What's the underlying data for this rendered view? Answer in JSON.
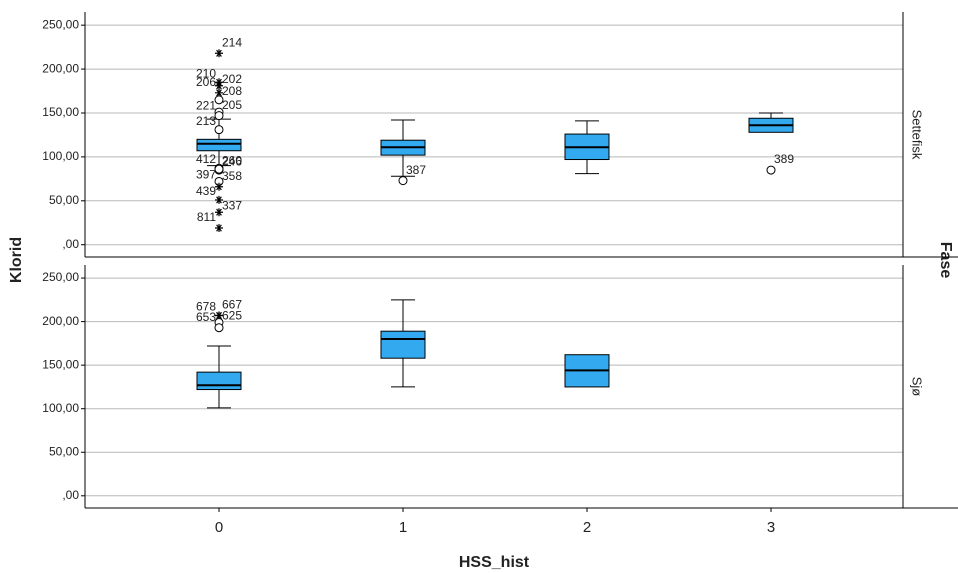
{
  "chart_data": {
    "type": "boxplot",
    "x_label": "HSS_hist",
    "y_label": "Klorid",
    "facet_label": "Fase",
    "categories": [
      "0",
      "1",
      "2",
      "3"
    ],
    "color": "#33aaf0",
    "grid": true,
    "ylim": [
      -14,
      265
    ],
    "yticks": [
      {
        "value": 0,
        "label": ",00"
      },
      {
        "value": 50,
        "label": "50,00"
      },
      {
        "value": 100,
        "label": "100,00"
      },
      {
        "value": 150,
        "label": "150,00"
      },
      {
        "value": 200,
        "label": "200,00"
      },
      {
        "value": 250,
        "label": "250,00"
      }
    ],
    "panels": [
      {
        "name": "Settefisk",
        "boxes": [
          {
            "min": 90,
            "q1": 107,
            "median": 115,
            "q3": 120,
            "max": 143,
            "outliers": [
              {
                "value": 218,
                "label": "214",
                "marker": "star"
              },
              {
                "value": 185,
                "label": "210",
                "marker": "star"
              },
              {
                "value": 181,
                "label": "202",
                "marker": "star"
              },
              {
                "value": 173,
                "label": "206",
                "marker": "star"
              },
              {
                "value": 165,
                "label": "208",
                "marker": "circle"
              },
              {
                "value": 151,
                "label": "221",
                "marker": "circle"
              },
              {
                "value": 147,
                "label": "205",
                "marker": "circle"
              },
              {
                "value": 131,
                "label": "213",
                "marker": "circle"
              },
              {
                "value": 87,
                "label": "246",
                "marker": "circle"
              },
              {
                "value": 85,
                "label": "412",
                "marker": "circle"
              },
              {
                "value": 86,
                "label": "260",
                "marker": "circle"
              },
              {
                "value": 72,
                "label": "397",
                "marker": "circle"
              },
              {
                "value": 66,
                "label": "358",
                "marker": "star"
              },
              {
                "value": 51,
                "label": "439",
                "marker": "star"
              },
              {
                "value": 37,
                "label": "337",
                "marker": "star"
              },
              {
                "value": 19,
                "label": "811",
                "marker": "star"
              }
            ]
          },
          {
            "min": 78,
            "q1": 102,
            "median": 111,
            "q3": 119,
            "max": 142,
            "outliers": [
              {
                "value": 73,
                "label": "387",
                "marker": "circle"
              }
            ]
          },
          {
            "min": 81,
            "q1": 97,
            "median": 111,
            "q3": 126,
            "max": 141,
            "outliers": []
          },
          {
            "min": 128,
            "q1": 128,
            "median": 136,
            "q3": 144,
            "max": 150,
            "outliers": [
              {
                "value": 85,
                "label": "389",
                "marker": "circle"
              }
            ]
          }
        ]
      },
      {
        "name": "Sjø",
        "boxes": [
          {
            "min": 101,
            "q1": 122,
            "median": 127,
            "q3": 142,
            "max": 172,
            "outliers": [
              {
                "value": 207,
                "label": "667",
                "marker": "star"
              },
              {
                "value": 207,
                "label": "678",
                "marker": "star"
              },
              {
                "value": 199,
                "label": "625",
                "marker": "circle"
              },
              {
                "value": 193,
                "label": "653",
                "marker": "circle"
              }
            ]
          },
          {
            "min": 125,
            "q1": 158,
            "median": 180,
            "q3": 189,
            "max": 225,
            "outliers": []
          },
          {
            "min": 125,
            "q1": 125,
            "median": 144,
            "q3": 162,
            "max": 162,
            "outliers": []
          },
          null
        ]
      }
    ]
  }
}
